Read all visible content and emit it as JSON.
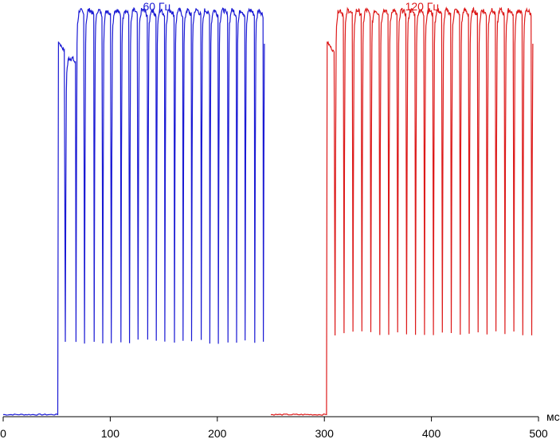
{
  "chart_data": {
    "type": "line",
    "x_unit": "мс",
    "xlim": [
      0,
      500
    ],
    "ylim": [
      0,
      1
    ],
    "x_ticks": [
      0,
      100,
      200,
      300,
      400,
      500
    ],
    "x_tick_labels": [
      "0",
      "100",
      "200",
      "300",
      "400",
      "500"
    ],
    "grid": false,
    "series": [
      {
        "name": "60 Гц",
        "color": "#1a1ad4",
        "x_start": 0,
        "x_end": 250,
        "rise_x": 51,
        "baseline": 0.005,
        "first_peak": 0.9,
        "second_level": 0.86,
        "plateau": 0.975,
        "dip_level": 0.18,
        "dips_x": [
          58,
          68,
          76,
          85,
          93,
          101,
          110,
          118,
          126,
          135,
          143,
          151,
          160,
          168,
          176,
          185,
          193,
          201,
          210,
          218,
          226,
          235,
          243
        ]
      },
      {
        "name": "120 Гц",
        "color": "#dd1a1a",
        "x_start": 250,
        "x_end": 500,
        "rise_x": 302,
        "baseline": 0.005,
        "first_peak": 0.9,
        "plateau": 0.975,
        "dip_level": 0.2,
        "dip_spacing": 8.35,
        "dip_start": 310,
        "dip_end": 494
      }
    ]
  }
}
